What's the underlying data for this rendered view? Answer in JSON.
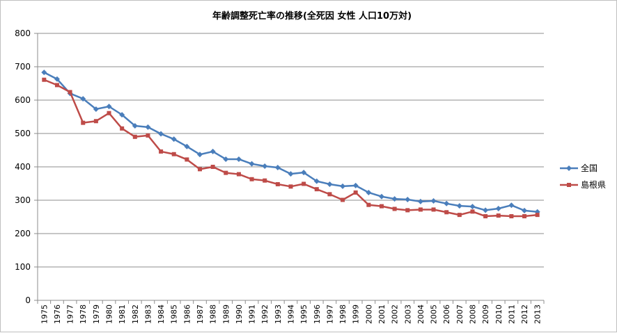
{
  "chart_data": {
    "type": "line",
    "title": "年齢調整死亡率の推移(全死因 女性 人口10万対)",
    "xlabel": "",
    "ylabel": "",
    "ylim": [
      0,
      800
    ],
    "yticks": [
      0,
      100,
      200,
      300,
      400,
      500,
      600,
      700,
      800
    ],
    "grid": true,
    "legend_position": "right",
    "categories": [
      "1975",
      "1976",
      "1977",
      "1978",
      "1979",
      "1980",
      "1981",
      "1982",
      "1983",
      "1984",
      "1985",
      "1986",
      "1987",
      "1988",
      "1989",
      "1990",
      "1991",
      "1992",
      "1993",
      "1994",
      "1995",
      "1996",
      "1997",
      "1998",
      "1999",
      "2000",
      "2001",
      "2002",
      "2003",
      "2004",
      "2005",
      "2006",
      "2007",
      "2008",
      "2009",
      "2010",
      "2011",
      "2012",
      "2013"
    ],
    "series": [
      {
        "name": "全国",
        "color": "#4a7ebb",
        "marker": "diamond",
        "values": [
          683,
          663,
          620,
          604,
          573,
          581,
          556,
          523,
          519,
          499,
          483,
          461,
          437,
          446,
          423,
          423,
          409,
          402,
          398,
          379,
          383,
          357,
          348,
          342,
          344,
          323,
          311,
          304,
          302,
          296,
          298,
          290,
          283,
          281,
          270,
          275,
          285,
          269,
          265
        ]
      },
      {
        "name": "島根県",
        "color": "#be4b48",
        "marker": "square",
        "values": [
          661,
          645,
          624,
          532,
          537,
          561,
          515,
          490,
          494,
          446,
          438,
          422,
          393,
          400,
          382,
          378,
          363,
          359,
          348,
          341,
          349,
          333,
          318,
          301,
          323,
          286,
          282,
          274,
          270,
          272,
          272,
          264,
          256,
          266,
          252,
          254,
          252,
          252,
          256
        ]
      }
    ]
  }
}
